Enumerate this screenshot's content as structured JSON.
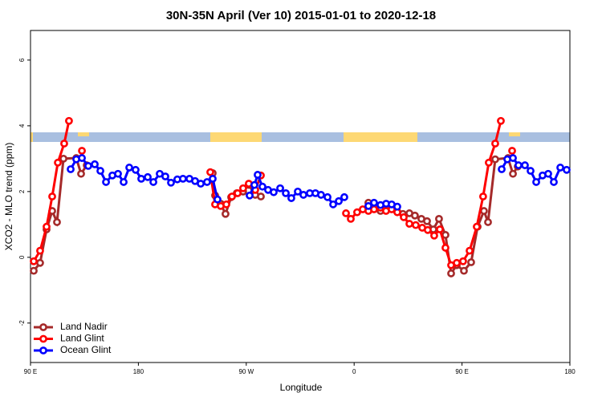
{
  "chart_data": {
    "type": "line",
    "title": "30N-35N April (Ver 10)   2015-01-01 to 2020-12-18",
    "x_label": "Longitude",
    "y_label": "XCO2 - MLO trend (ppm)",
    "xlim": [
      90,
      540
    ],
    "ylim": [
      -3.2,
      6.9
    ],
    "xticks": [
      {
        "value": 90,
        "label": "90 E"
      },
      180,
      {
        "value": 270,
        "label": "90 W"
      },
      {
        "value": 360,
        "label": "0"
      },
      {
        "value": 450,
        "label": "90 E"
      },
      {
        "value": 540,
        "label": "180"
      }
    ],
    "yticks": [
      -2,
      0,
      2,
      4,
      6
    ],
    "legend": "bottom-left",
    "series": [
      {
        "name": "Land Nadir",
        "color": "#a52a2a",
        "x": [
          92.7,
          98.0,
          103.4,
          108.1,
          112.1,
          117.5,
          128.2,
          132.2,
          136.9,
          190,
          242.0,
          244.0,
          248.7,
          252.7,
          257.4,
          262.1,
          267.4,
          272.1,
          277.5,
          282.2,
          330,
          371.9,
          376.6,
          382.0,
          386.6,
          391.3,
          396.0,
          400.7,
          406.1,
          410.7,
          416.1,
          420.8,
          426.1,
          430.8,
          436.2,
          440.9,
          445.6,
          451.6,
          457.6,
          463.0,
          468.3,
          471.7,
          477.7,
          488.4,
          492.5,
          496.5
        ],
        "values": [
          -0.41,
          -0.17,
          0.85,
          1.41,
          1.07,
          3.0,
          3.02,
          2.54,
          2.8,
          null,
          2.56,
          1.88,
          1.63,
          1.32,
          1.83,
          1.95,
          2.0,
          2.2,
          1.9,
          1.85,
          null,
          1.66,
          1.56,
          1.41,
          1.51,
          1.56,
          1.39,
          1.32,
          1.34,
          1.27,
          1.17,
          1.1,
          0.85,
          1.17,
          0.68,
          -0.49,
          -0.24,
          -0.41,
          -0.15,
          0.93,
          1.41,
          1.07,
          2.98,
          3.02,
          2.54,
          2.76
        ]
      },
      {
        "name": "Land Glint",
        "color": "#ff0000",
        "x": [
          92.7,
          98.0,
          103.4,
          108.1,
          112.8,
          118.1,
          122.1,
          127,
          132.9,
          190,
          240.0,
          244.0,
          248.7,
          253.4,
          258.1,
          262.8,
          267.4,
          272.1,
          277.5,
          282.2,
          320,
          353.2,
          357.2,
          362.5,
          367.2,
          371.9,
          376.6,
          382.0,
          386.6,
          391.3,
          396.0,
          401.4,
          406.1,
          411.4,
          416.8,
          421.4,
          426.8,
          431.5,
          436.2,
          440.9,
          445.6,
          450.9,
          456.3,
          462.3,
          467.6,
          472.3,
          477.7,
          482.4,
          487,
          491.8
        ],
        "values": [
          -0.12,
          0.2,
          0.93,
          1.85,
          2.88,
          3.46,
          4.15,
          null,
          3.24,
          null,
          2.59,
          1.61,
          1.56,
          1.61,
          1.85,
          1.95,
          2.1,
          2.24,
          2.05,
          2.49,
          null,
          1.34,
          1.17,
          1.37,
          1.46,
          1.41,
          1.46,
          1.51,
          1.41,
          1.46,
          1.37,
          1.22,
          1.02,
          0.98,
          0.9,
          0.83,
          0.66,
          0.85,
          0.29,
          -0.24,
          -0.17,
          -0.12,
          0.2,
          0.93,
          1.85,
          2.88,
          3.46,
          4.15,
          null,
          3.24
        ]
      },
      {
        "name": "Ocean Glint",
        "color": "#0000ff",
        "x": [
          123.5,
          128.2,
          132.9,
          138.2,
          143.6,
          148.3,
          153.0,
          158.3,
          163.0,
          167.7,
          172.4,
          177.7,
          182.4,
          187.8,
          192.5,
          197.8,
          202.5,
          207.2,
          212.5,
          217.2,
          222.6,
          227.3,
          232.0,
          237.3,
          242.0,
          246.0,
          260,
          272.8,
          276.8,
          279.5,
          283.5,
          288.2,
          292.9,
          298.3,
          303.0,
          307.6,
          313.0,
          317.7,
          323.0,
          327.7,
          332.4,
          337.8,
          342.5,
          347.2,
          351.8,
          362,
          371.9,
          376.6,
          382.0,
          386.7,
          391.3,
          396.0,
          440,
          483.1,
          487.8,
          492.5,
          497.1,
          502.5,
          507.2,
          511.9,
          517.2,
          521.9,
          526.6,
          532.0,
          537.3
        ],
        "values": [
          2.68,
          2.98,
          3.02,
          2.78,
          2.83,
          2.63,
          2.29,
          2.49,
          2.54,
          2.29,
          2.73,
          2.66,
          2.39,
          2.44,
          2.29,
          2.54,
          2.46,
          2.27,
          2.37,
          2.39,
          2.39,
          2.32,
          2.24,
          2.29,
          2.39,
          1.76,
          null,
          1.88,
          2.2,
          2.51,
          2.15,
          2.05,
          1.98,
          2.1,
          1.95,
          1.8,
          2.0,
          1.9,
          1.95,
          1.95,
          1.9,
          1.83,
          1.61,
          1.71,
          1.83,
          null,
          1.56,
          1.66,
          1.59,
          1.63,
          1.61,
          1.54,
          null,
          2.68,
          2.98,
          3.02,
          2.8,
          2.8,
          2.63,
          2.29,
          2.49,
          2.54,
          2.29,
          2.73,
          2.66
        ]
      }
    ]
  }
}
